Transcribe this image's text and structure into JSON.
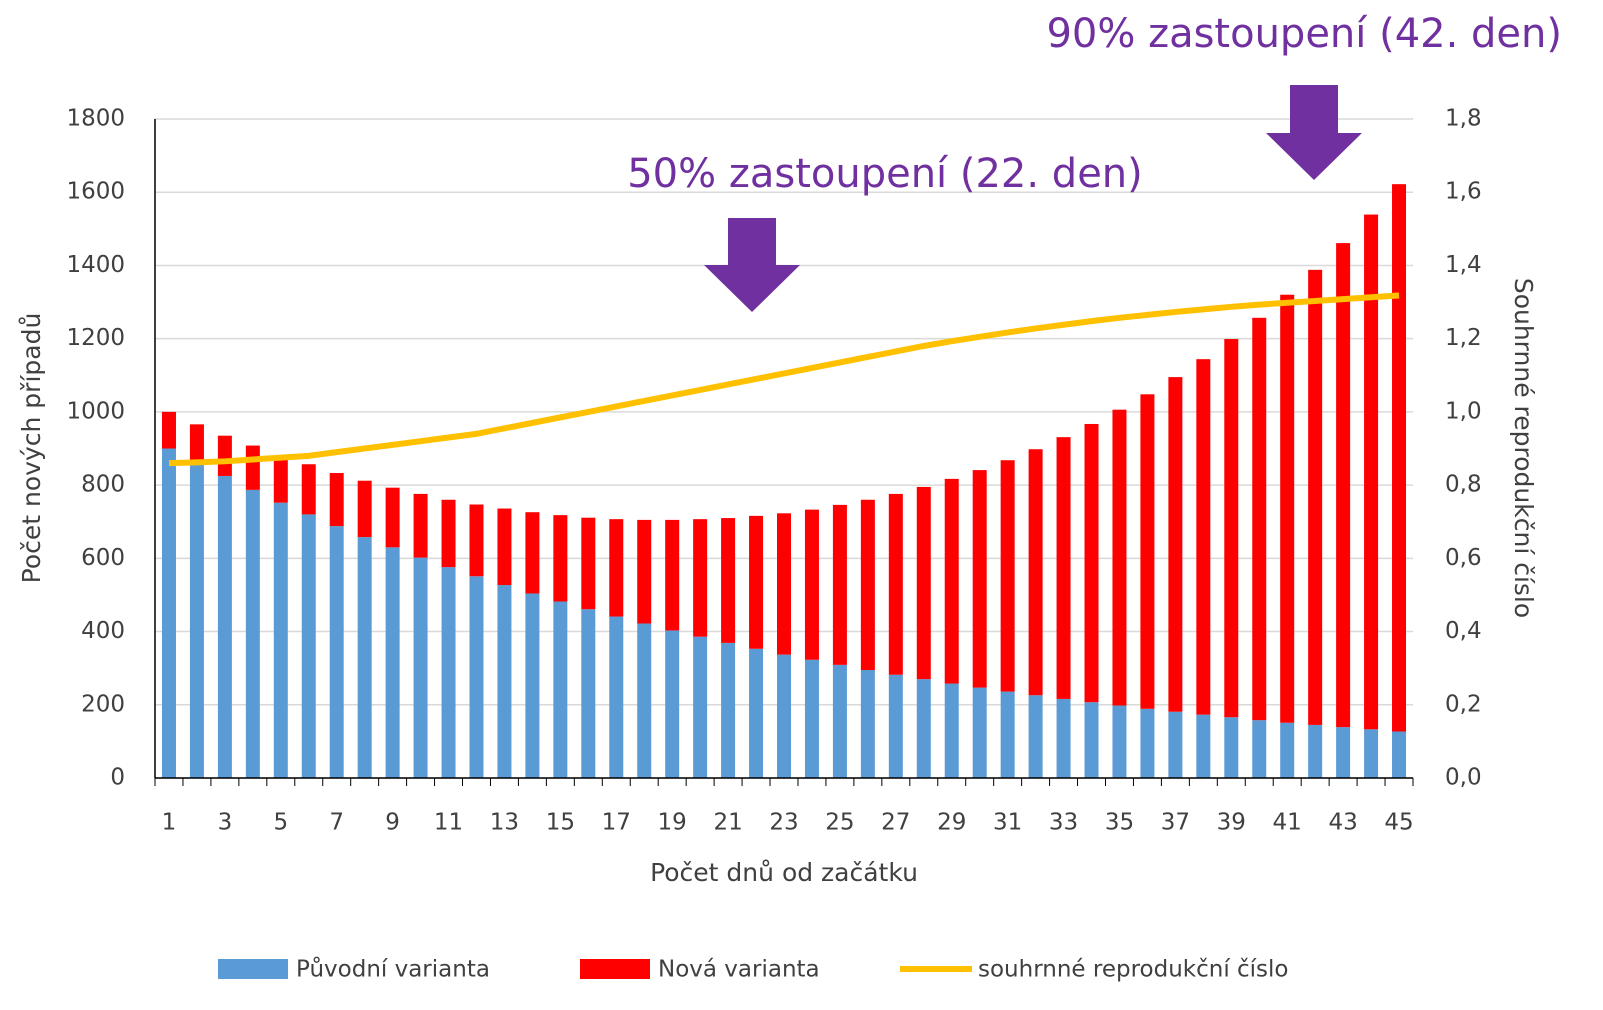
{
  "chart_data": {
    "type": "bar",
    "stacked": true,
    "x_label": "Počet dnů od začátku",
    "y_label": "Počet nových případů",
    "y2_label": "Souhrnné reprodukční číslo",
    "categories": [
      1,
      null,
      3,
      null,
      5,
      null,
      7,
      null,
      9,
      null,
      11,
      null,
      13,
      null,
      15,
      null,
      17,
      null,
      19,
      null,
      21,
      null,
      23,
      null,
      25,
      null,
      27,
      null,
      29,
      null,
      31,
      null,
      33,
      null,
      35,
      null,
      37,
      null,
      39,
      null,
      41,
      null,
      43,
      null,
      45
    ],
    "series": [
      {
        "name": "Původní varianta",
        "color": "#5b9bd5",
        "type": "bar",
        "values": [
          900,
          860,
          825,
          787,
          752,
          720,
          688,
          658,
          630,
          602,
          576,
          551,
          527,
          504,
          482,
          461,
          441,
          422,
          403,
          386,
          369,
          353,
          337,
          323,
          309,
          295,
          282,
          270,
          258,
          247,
          236,
          226,
          216,
          207,
          198,
          189,
          181,
          173,
          166,
          158,
          151,
          145,
          139,
          133,
          127
        ]
      },
      {
        "name": "Nová varianta",
        "color": "#ff0000",
        "type": "bar",
        "values": [
          100,
          106,
          110,
          121,
          128,
          137,
          145,
          154,
          163,
          174,
          184,
          196,
          209,
          222,
          236,
          250,
          266,
          283,
          302,
          321,
          341,
          363,
          386,
          410,
          437,
          465,
          494,
          525,
          559,
          594,
          632,
          672,
          715,
          760,
          808,
          859,
          914,
          971,
          1033,
          1099,
          1169,
          1243,
          1322,
          1406,
          1495
        ]
      },
      {
        "name": "souhrnné reprodukční číslo",
        "color": "#ffc000",
        "type": "line",
        "axis": "y2",
        "values": [
          0.86,
          0.862,
          0.865,
          0.87,
          0.875,
          0.88,
          0.89,
          0.9,
          0.91,
          0.92,
          0.93,
          0.94,
          0.955,
          0.97,
          0.985,
          1.0,
          1.015,
          1.03,
          1.045,
          1.06,
          1.075,
          1.09,
          1.105,
          1.12,
          1.135,
          1.15,
          1.165,
          1.18,
          1.193,
          1.205,
          1.217,
          1.228,
          1.238,
          1.248,
          1.257,
          1.265,
          1.273,
          1.28,
          1.287,
          1.293,
          1.298,
          1.303,
          1.308,
          1.313,
          1.318
        ]
      }
    ],
    "ylim": [
      0,
      1800
    ],
    "yticks": [
      0,
      200,
      400,
      600,
      800,
      1000,
      1200,
      1400,
      1600,
      1800
    ],
    "y2lim": [
      0,
      1.8
    ],
    "y2ticks": [
      {
        "value": 0,
        "label": "0,0"
      },
      {
        "value": 0.2,
        "label": "0,2"
      },
      {
        "value": 0.4,
        "label": "0,4"
      },
      {
        "value": 0.6,
        "label": "0,6"
      },
      {
        "value": 0.8,
        "label": "0,8"
      },
      {
        "value": 1.0,
        "label": "1,0"
      },
      {
        "value": 1.2,
        "label": "1,2"
      },
      {
        "value": 1.4,
        "label": "1,4"
      },
      {
        "value": 1.6,
        "label": "1,6"
      },
      {
        "value": 1.8,
        "label": "1,8"
      }
    ],
    "grid": true,
    "legend": "bottom",
    "annotations": [
      "50% zastoupení (22. den)",
      "90% zastoupení (42. den)"
    ]
  }
}
